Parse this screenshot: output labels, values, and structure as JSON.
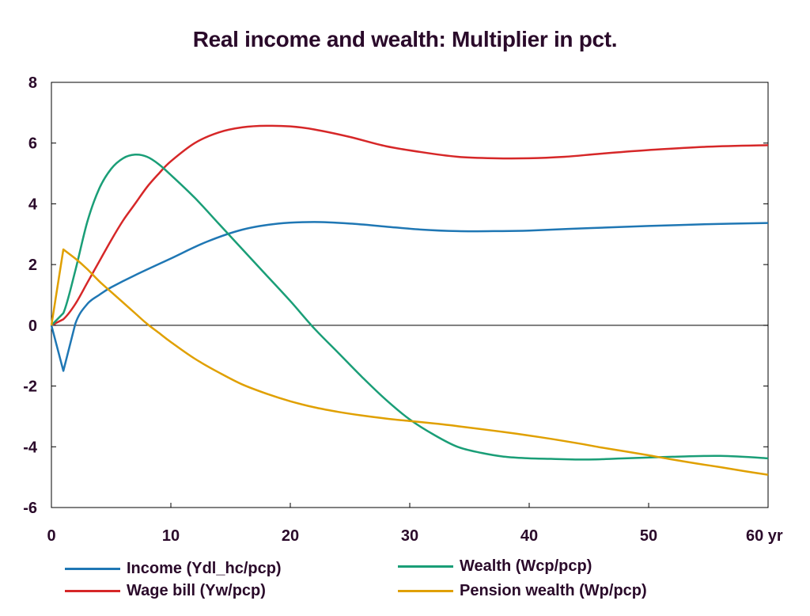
{
  "chart_data": {
    "type": "line",
    "title": "Real income and wealth: Multiplier in pct.",
    "xlim": [
      0,
      60
    ],
    "ylim": [
      -6,
      8
    ],
    "x_ticks": [
      0,
      10,
      20,
      30,
      40,
      50,
      60
    ],
    "x_tick_labels": [
      "0",
      "10",
      "20",
      "30",
      "40",
      "50",
      "60 yr"
    ],
    "y_ticks": [
      -6,
      -4,
      -2,
      0,
      2,
      4,
      6,
      8
    ],
    "y_tick_labels": [
      "-6",
      "-4",
      "-2",
      "0",
      "2",
      "4",
      "6",
      "8"
    ],
    "grid": false,
    "zero_line": true,
    "legend_position": "bottom",
    "series": [
      {
        "name": "Income (Ydl_hc/pcp)",
        "color": "#1f77b4",
        "points": [
          [
            0,
            0
          ],
          [
            1,
            -1.5
          ],
          [
            2,
            0.05
          ],
          [
            3,
            0.7
          ],
          [
            4,
            1.0
          ],
          [
            5,
            1.25
          ],
          [
            7,
            1.65
          ],
          [
            10,
            2.2
          ],
          [
            13,
            2.75
          ],
          [
            16,
            3.15
          ],
          [
            19,
            3.35
          ],
          [
            22,
            3.4
          ],
          [
            25,
            3.35
          ],
          [
            28,
            3.25
          ],
          [
            31,
            3.15
          ],
          [
            34,
            3.1
          ],
          [
            37,
            3.1
          ],
          [
            40,
            3.12
          ],
          [
            45,
            3.2
          ],
          [
            50,
            3.27
          ],
          [
            55,
            3.33
          ],
          [
            60,
            3.37
          ]
        ]
      },
      {
        "name": "Wage bill (Yw/pcp)",
        "color": "#d62728",
        "points": [
          [
            0,
            0
          ],
          [
            1,
            0.2
          ],
          [
            2,
            0.7
          ],
          [
            3,
            1.4
          ],
          [
            4,
            2.1
          ],
          [
            5,
            2.8
          ],
          [
            6,
            3.45
          ],
          [
            7,
            4.0
          ],
          [
            8,
            4.55
          ],
          [
            9,
            5.0
          ],
          [
            10,
            5.4
          ],
          [
            12,
            6.0
          ],
          [
            14,
            6.35
          ],
          [
            16,
            6.52
          ],
          [
            18,
            6.57
          ],
          [
            20,
            6.55
          ],
          [
            22,
            6.45
          ],
          [
            25,
            6.2
          ],
          [
            28,
            5.9
          ],
          [
            31,
            5.7
          ],
          [
            34,
            5.55
          ],
          [
            37,
            5.5
          ],
          [
            40,
            5.5
          ],
          [
            43,
            5.55
          ],
          [
            46,
            5.65
          ],
          [
            50,
            5.77
          ],
          [
            55,
            5.88
          ],
          [
            60,
            5.93
          ]
        ]
      },
      {
        "name": "Wealth (Wcp/pcp)",
        "color": "#1a9e77",
        "points": [
          [
            0,
            0
          ],
          [
            1,
            0.4
          ],
          [
            2,
            1.8
          ],
          [
            3,
            3.4
          ],
          [
            4,
            4.5
          ],
          [
            5,
            5.15
          ],
          [
            6,
            5.5
          ],
          [
            7,
            5.62
          ],
          [
            8,
            5.55
          ],
          [
            9,
            5.3
          ],
          [
            10,
            4.95
          ],
          [
            12,
            4.2
          ],
          [
            14,
            3.35
          ],
          [
            16,
            2.5
          ],
          [
            18,
            1.65
          ],
          [
            20,
            0.8
          ],
          [
            22,
            -0.1
          ],
          [
            24,
            -0.9
          ],
          [
            26,
            -1.7
          ],
          [
            28,
            -2.45
          ],
          [
            30,
            -3.1
          ],
          [
            32,
            -3.6
          ],
          [
            34,
            -4.0
          ],
          [
            36,
            -4.2
          ],
          [
            38,
            -4.33
          ],
          [
            40,
            -4.38
          ],
          [
            42,
            -4.4
          ],
          [
            45,
            -4.42
          ],
          [
            48,
            -4.38
          ],
          [
            52,
            -4.33
          ],
          [
            56,
            -4.3
          ],
          [
            60,
            -4.38
          ]
        ]
      },
      {
        "name": "Pension wealth (Wp/pcp)",
        "color": "#e0a000",
        "points": [
          [
            0,
            0
          ],
          [
            1,
            2.5
          ],
          [
            2,
            2.2
          ],
          [
            3,
            1.85
          ],
          [
            4,
            1.45
          ],
          [
            5,
            1.1
          ],
          [
            6,
            0.75
          ],
          [
            7,
            0.4
          ],
          [
            8,
            0.05
          ],
          [
            9,
            -0.25
          ],
          [
            10,
            -0.55
          ],
          [
            12,
            -1.1
          ],
          [
            14,
            -1.55
          ],
          [
            16,
            -1.95
          ],
          [
            18,
            -2.25
          ],
          [
            20,
            -2.5
          ],
          [
            22,
            -2.7
          ],
          [
            24,
            -2.85
          ],
          [
            26,
            -2.97
          ],
          [
            28,
            -3.07
          ],
          [
            30,
            -3.15
          ],
          [
            32,
            -3.23
          ],
          [
            34,
            -3.32
          ],
          [
            36,
            -3.42
          ],
          [
            38,
            -3.52
          ],
          [
            40,
            -3.63
          ],
          [
            42,
            -3.75
          ],
          [
            44,
            -3.88
          ],
          [
            46,
            -4.02
          ],
          [
            48,
            -4.15
          ],
          [
            50,
            -4.28
          ],
          [
            52,
            -4.42
          ],
          [
            54,
            -4.55
          ],
          [
            56,
            -4.67
          ],
          [
            58,
            -4.8
          ],
          [
            60,
            -4.92
          ]
        ]
      }
    ]
  },
  "legend": [
    {
      "label": "Income (Ydl_hc/pcp)",
      "color": "#1f77b4"
    },
    {
      "label": "Wealth (Wcp/pcp)",
      "color": "#1a9e77"
    },
    {
      "label": "Wage bill (Yw/pcp)",
      "color": "#d62728"
    },
    {
      "label": "Pension wealth (Wp/pcp)",
      "color": "#e0a000"
    }
  ]
}
